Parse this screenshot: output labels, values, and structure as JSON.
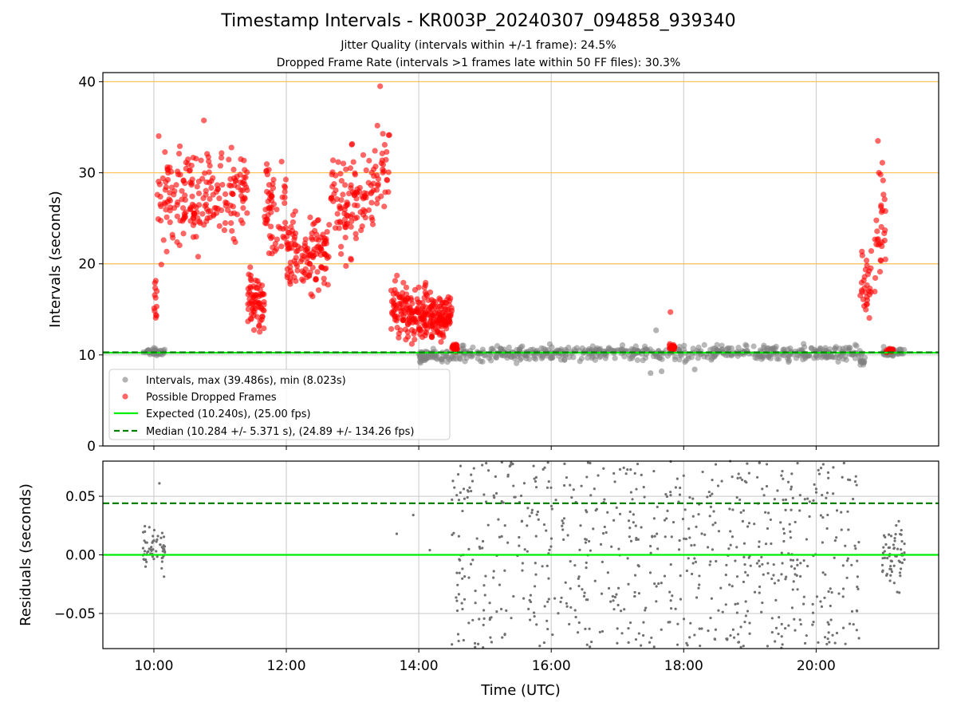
{
  "title": "Timestamp Intervals - KR003P_20240307_094858_939340",
  "subtitle_1": "Jitter Quality (intervals within +/-1 frame): 24.5%",
  "subtitle_2": "Dropped Frame Rate (intervals >1 frames late within 50 FF files): 30.3%",
  "colors": {
    "intervals": "#808080",
    "dropped": "#ff0000",
    "expected": "#00ee00",
    "median": "#008000",
    "threshold": "#ffc04d",
    "grid": "#c8c8c8"
  },
  "chart_data": [
    {
      "type": "scatter",
      "ylabel": "Intervals (seconds)",
      "xlim_hours": [
        9.23,
        21.85
      ],
      "ylim": [
        0,
        41
      ],
      "yticks": [
        0,
        10,
        20,
        30,
        40
      ],
      "grid": true,
      "legend_position": "lower-left",
      "threshold_lines": [
        20,
        30,
        40
      ],
      "expected_value": 10.24,
      "median_value": 10.284,
      "legend": [
        "Intervals, max (39.486s), min (8.023s)",
        "Possible Dropped Frames",
        "Expected (10.240s), (25.00 fps)",
        "Median (10.284 +/- 5.371 s), (24.89 +/- 134.26 fps)"
      ],
      "intervals_series": {
        "name": "Intervals, max (39.486s), min (8.023s)",
        "segments": [
          {
            "x_range": [
              "09:50",
              "10:10"
            ],
            "y_center": 10.3,
            "y_spread": 0.6,
            "count": 40
          },
          {
            "x_range": [
              "14:00",
              "14:30"
            ],
            "y_center": 9.9,
            "y_spread": 1.2,
            "count": 60
          },
          {
            "x_range": [
              "14:30",
              "20:40"
            ],
            "y_center": 10.2,
            "y_spread": 1.4,
            "count": 520
          },
          {
            "x_range": [
              "20:40",
              "20:45"
            ],
            "y_center": 9.4,
            "y_spread": 1.3,
            "count": 14
          },
          {
            "x_range": [
              "21:00",
              "21:20"
            ],
            "y_center": 10.3,
            "y_spread": 0.7,
            "count": 40
          }
        ],
        "points": [
          {
            "x": "17:35",
            "y": 12.7
          },
          {
            "x": "17:40",
            "y": 8.2
          },
          {
            "x": "18:10",
            "y": 8.4
          },
          {
            "x": "17:30",
            "y": 8.0
          }
        ]
      },
      "dropped_series": {
        "name": "Possible Dropped Frames",
        "clusters": [
          {
            "x_range": [
              "10:00",
              "10:03"
            ],
            "y_range": [
              12,
              20
            ],
            "count": 12
          },
          {
            "x_range": [
              "10:03",
              "11:00"
            ],
            "y_range": [
              18,
              36
            ],
            "count": 150
          },
          {
            "x_range": [
              "11:00",
              "11:25"
            ],
            "y_range": [
              21,
              35
            ],
            "count": 60
          },
          {
            "x_range": [
              "11:25",
              "11:40"
            ],
            "y_range": [
              10.5,
              21
            ],
            "count": 70
          },
          {
            "x_range": [
              "11:40",
              "12:00"
            ],
            "y_range": [
              18,
              34
            ],
            "count": 60
          },
          {
            "x_range": [
              "12:00",
              "12:40"
            ],
            "y_range": [
              14,
              28
            ],
            "count": 130
          },
          {
            "x_range": [
              "12:40",
              "13:20"
            ],
            "y_range": [
              18,
              35.5
            ],
            "count": 110
          },
          {
            "x_range": [
              "13:20",
              "13:35"
            ],
            "y_range": [
              22,
              39.5
            ],
            "count": 30
          },
          {
            "x_range": [
              "13:35",
              "13:50"
            ],
            "y_range": [
              10.5,
              20.5
            ],
            "count": 60
          },
          {
            "x_range": [
              "13:50",
              "14:30"
            ],
            "y_range": [
              10.3,
              18.3
            ],
            "count": 200
          },
          {
            "x_range": [
              "14:30",
              "14:35"
            ],
            "y_range": [
              10.2,
              11.5
            ],
            "count": 25
          },
          {
            "x_range": [
              "17:47",
              "17:53"
            ],
            "y_range": [
              10.2,
              11.5
            ],
            "count": 20
          },
          {
            "x_range": [
              "20:40",
              "20:50"
            ],
            "y_range": [
              10.5,
              25
            ],
            "count": 30
          },
          {
            "x_range": [
              "20:53",
              "21:03"
            ],
            "y_range": [
              13,
              33.5
            ],
            "count": 30
          },
          {
            "x_range": [
              "21:03",
              "21:10"
            ],
            "y_range": [
              10.2,
              10.8
            ],
            "count": 25
          }
        ],
        "points": [
          {
            "x": "17:48",
            "y": 14.7
          },
          {
            "x": "13:25",
            "y": 39.5
          },
          {
            "x": "20:56",
            "y": 33.5
          },
          {
            "x": "21:00",
            "y": 31.1
          }
        ]
      }
    },
    {
      "type": "scatter",
      "xlabel": "Time (UTC)",
      "ylabel": "Residuals (seconds)",
      "xlim_hours": [
        9.23,
        21.85
      ],
      "ylim": [
        -0.08,
        0.08
      ],
      "yticks": [
        "0.05",
        "0.00",
        "−0.05"
      ],
      "ytick_values": [
        0.05,
        0,
        -0.05
      ],
      "xticks": [
        "10:00",
        "12:00",
        "14:00",
        "16:00",
        "18:00",
        "20:00"
      ],
      "xtick_hours": [
        10,
        12,
        14,
        16,
        18,
        20
      ],
      "grid": true,
      "zero_line": 0,
      "median_line": 0.044,
      "residual_series": {
        "segments": [
          {
            "x_range": [
              "09:50",
              "10:10"
            ],
            "y_center": 0.005,
            "y_spread": 0.045,
            "count": 60
          },
          {
            "x_range": [
              "14:30",
              "20:40"
            ],
            "y_center": 0.0,
            "y_spread": 0.16,
            "count": 700
          },
          {
            "x_range": [
              "21:00",
              "21:20"
            ],
            "y_center": 0.0,
            "y_spread": 0.08,
            "count": 60
          }
        ],
        "points": [
          {
            "x": "10:05",
            "y": 0.061
          },
          {
            "x": "13:40",
            "y": 0.018
          },
          {
            "x": "13:55",
            "y": 0.034
          },
          {
            "x": "14:10",
            "y": 0.004
          }
        ]
      }
    }
  ]
}
